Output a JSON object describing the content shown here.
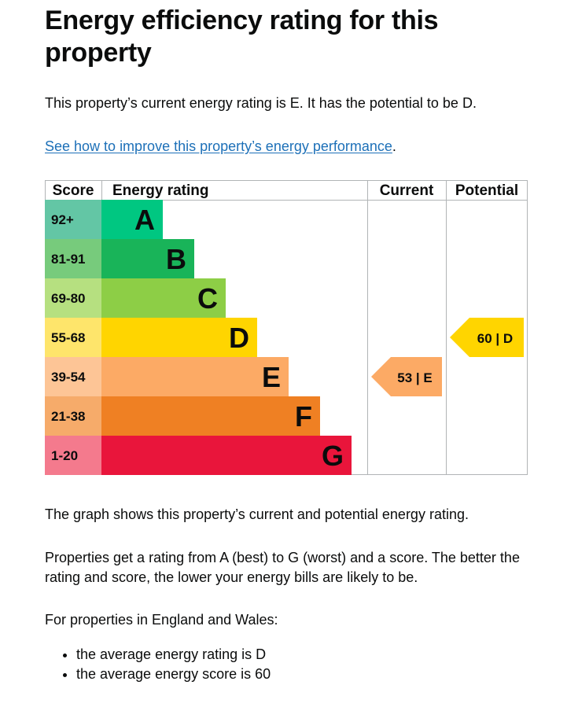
{
  "title": "Energy efficiency rating for this property",
  "summary": "This property’s current energy rating is E. It has the potential to be D.",
  "improve_link": "See how to improve this property’s energy performance",
  "improve_link_suffix": ".",
  "chart_data": {
    "type": "bar",
    "headers": {
      "score": "Score",
      "rating": "Energy rating",
      "current": "Current",
      "potential": "Potential"
    },
    "bands": [
      {
        "score": "92+",
        "letter": "A",
        "score_color": "#63c6a5",
        "band_color": "#00c781"
      },
      {
        "score": "81-91",
        "letter": "B",
        "score_color": "#77cb7c",
        "band_color": "#19b459"
      },
      {
        "score": "69-80",
        "letter": "C",
        "score_color": "#b6e080",
        "band_color": "#8dce46"
      },
      {
        "score": "55-68",
        "letter": "D",
        "score_color": "#fee56b",
        "band_color": "#ffd500"
      },
      {
        "score": "39-54",
        "letter": "E",
        "score_color": "#fdc596",
        "band_color": "#fcaa65"
      },
      {
        "score": "21-38",
        "letter": "F",
        "score_color": "#f6ab6a",
        "band_color": "#ef8023"
      },
      {
        "score": "1-20",
        "letter": "G",
        "score_color": "#f47a8d",
        "band_color": "#e9153b"
      }
    ],
    "current": {
      "score": 53,
      "band": "E",
      "label": "53 | E",
      "color": "#fcaa65"
    },
    "potential": {
      "score": 60,
      "band": "D",
      "label": "60 | D",
      "color": "#ffd500"
    }
  },
  "graph_caption": "The graph shows this property’s current and potential energy rating.",
  "rating_explanation": "Properties get a rating from A (best) to G (worst) and a score. The better the rating and score, the lower your energy bills are likely to be.",
  "england_wales_intro": "For properties in England and Wales:",
  "averages": [
    "the average energy rating is D",
    "the average energy score is 60"
  ]
}
